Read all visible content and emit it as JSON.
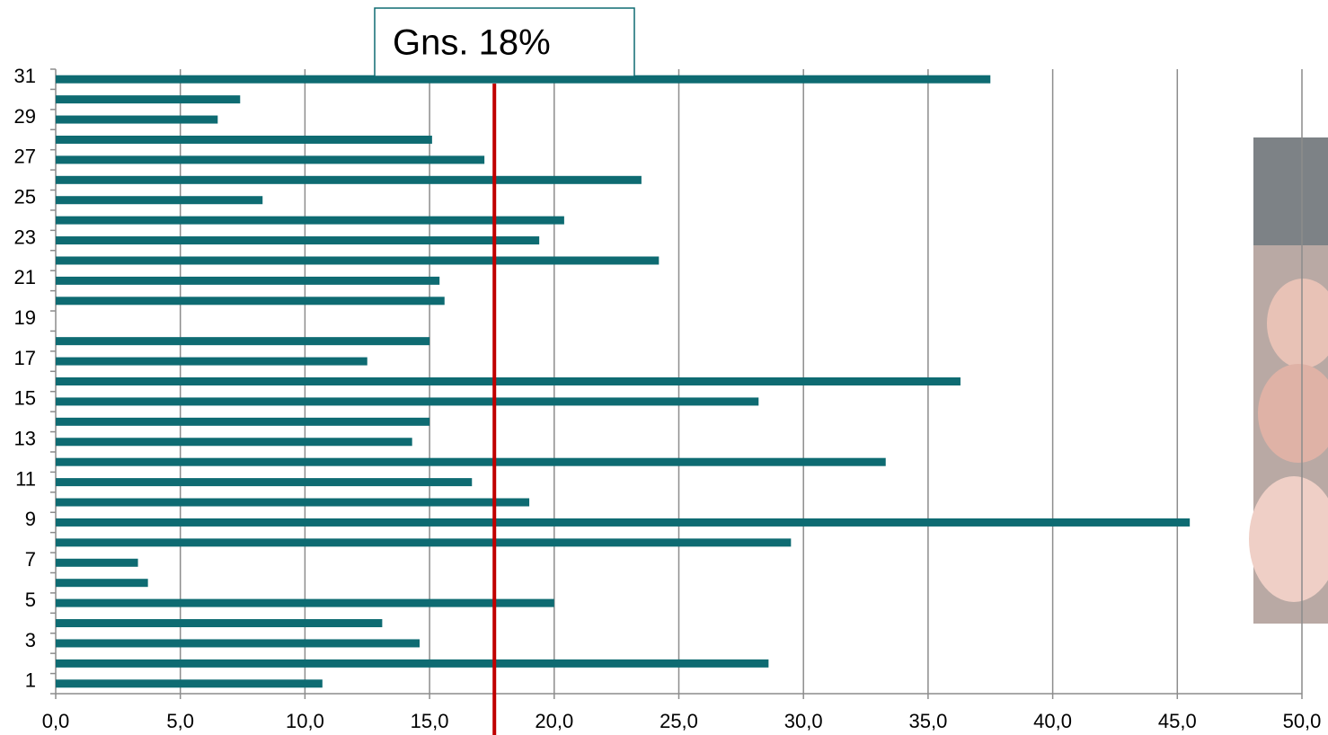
{
  "chart_data": {
    "type": "bar",
    "orientation": "horizontal",
    "categories": [
      "1",
      null,
      "3",
      null,
      "5",
      null,
      "7",
      null,
      "9",
      null,
      "11",
      null,
      "13",
      null,
      "15",
      null,
      "17",
      null,
      "19",
      null,
      "21",
      null,
      "23",
      null,
      "25",
      null,
      "27",
      null,
      "29",
      null,
      "31"
    ],
    "values": [
      10.7,
      28.6,
      14.6,
      13.1,
      20.0,
      3.7,
      3.3,
      29.5,
      45.5,
      19.0,
      16.7,
      33.3,
      14.3,
      15.0,
      28.2,
      36.3,
      12.5,
      15.0,
      0,
      15.6,
      15.4,
      24.2,
      19.4,
      20.4,
      8.3,
      23.5,
      17.2,
      15.1,
      6.5,
      7.4,
      37.5
    ],
    "color": "#0e6b72",
    "xlim": [
      0,
      50
    ],
    "xticks": [
      {
        "value": 0,
        "label": "0,0"
      },
      {
        "value": 5,
        "label": "5,0"
      },
      {
        "value": 10,
        "label": "10,0"
      },
      {
        "value": 15,
        "label": "15,0"
      },
      {
        "value": 20,
        "label": "20,0"
      },
      {
        "value": 25,
        "label": "25,0"
      },
      {
        "value": 30,
        "label": "30,0"
      },
      {
        "value": 35,
        "label": "35,0"
      },
      {
        "value": 40,
        "label": "40,0"
      },
      {
        "value": 45,
        "label": "45,0"
      },
      {
        "value": 50,
        "label": "50,0"
      }
    ],
    "grid": true,
    "reference_line": {
      "value": 17.6,
      "label": "Gns. 18%",
      "color": "#c00000"
    }
  }
}
